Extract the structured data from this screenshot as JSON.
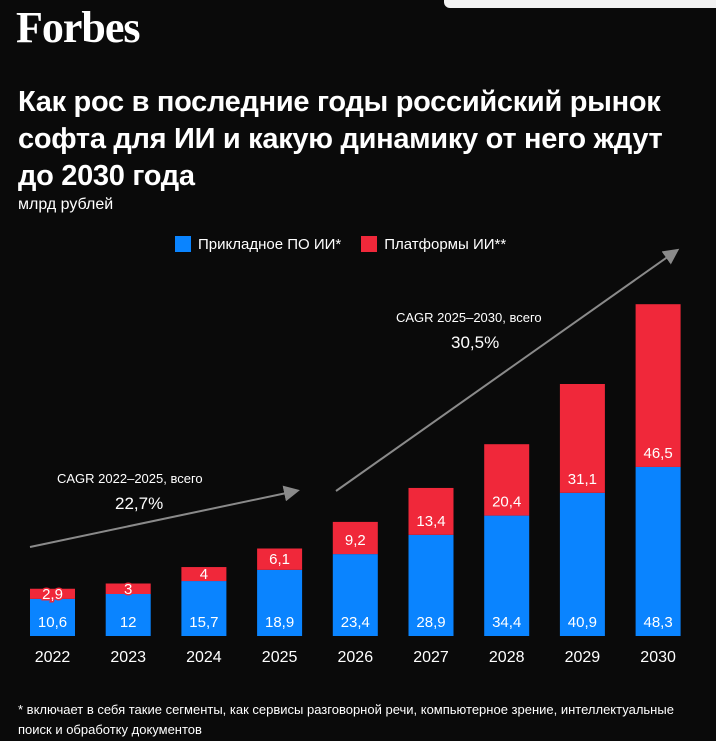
{
  "brand": "Forbes",
  "title": "Как рос в последние годы российский рынок софта для ИИ и какую динамику от него ждут до 2030 года",
  "unit": "млрд рублей",
  "footnote": "* включает в себя такие сегменты, как сервисы разговорной речи, компьютерное зрение, интеллектуальные поиск и обработку документов",
  "colors": {
    "applied": "#0a84ff",
    "platforms": "#f0283a",
    "background": "#0a0a0a"
  },
  "chart_data": {
    "type": "bar",
    "stacked": true,
    "categories": [
      "2022",
      "2023",
      "2024",
      "2025",
      "2026",
      "2027",
      "2028",
      "2029",
      "2030"
    ],
    "series": [
      {
        "name": "Прикладное ПО ИИ*",
        "values": [
          10.6,
          12,
          15.7,
          18.9,
          23.4,
          28.9,
          34.4,
          40.9,
          48.3
        ],
        "labels": [
          "10,6",
          "12",
          "15,7",
          "18,9",
          "23,4",
          "28,9",
          "34,4",
          "40,9",
          "48,3"
        ]
      },
      {
        "name": "Платформы ИИ**",
        "values": [
          2.9,
          3,
          4,
          6.1,
          9.2,
          13.4,
          20.4,
          31.1,
          46.5
        ],
        "labels": [
          "2,9",
          "3",
          "4",
          "6,1",
          "9,2",
          "13,4",
          "20,4",
          "31,1",
          "46,5"
        ]
      }
    ],
    "legend_position": "top-center",
    "grid": false,
    "annotations": [
      {
        "label": "CAGR 2022–2025, всего",
        "value": "22,7%"
      },
      {
        "label": "CAGR 2025–2030, всего",
        "value": "30,5%"
      }
    ]
  }
}
